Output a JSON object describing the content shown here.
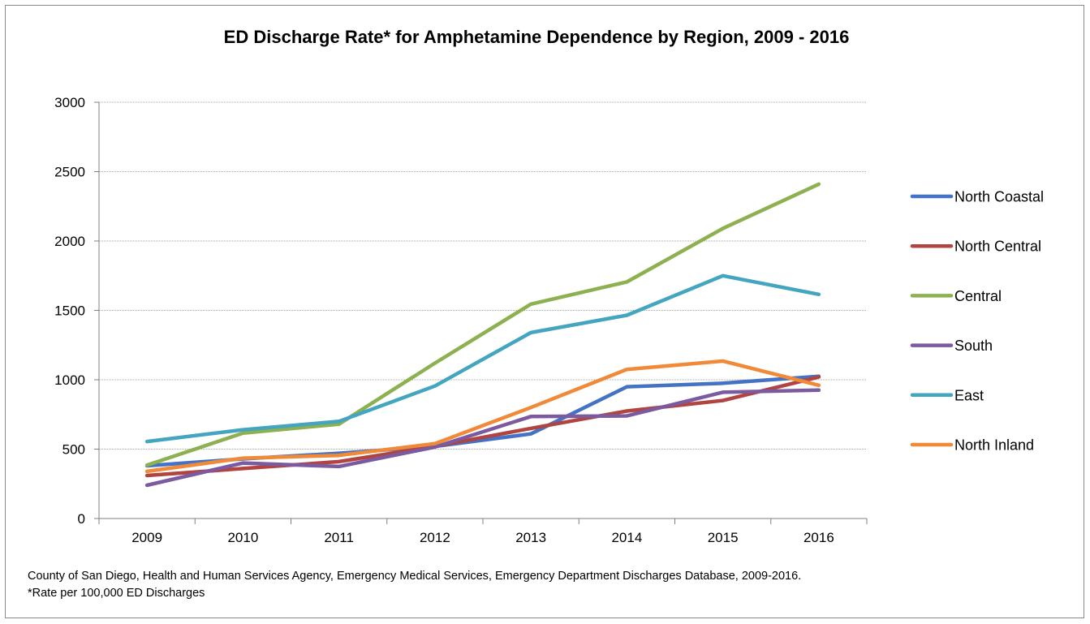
{
  "chart_data": {
    "type": "line",
    "title": "ED Discharge Rate*  for Amphetamine Dependence by Region, 2009 - 2016",
    "xlabel": "",
    "ylabel": "",
    "categories": [
      "2009",
      "2010",
      "2011",
      "2012",
      "2013",
      "2014",
      "2015",
      "2016"
    ],
    "ylim": [
      0,
      3000
    ],
    "yticks": [
      "0",
      "500",
      "1000",
      "1500",
      "2000",
      "2500",
      "3000"
    ],
    "grid": "horizontal",
    "legend_position": "right",
    "series": [
      {
        "name": "North Coastal",
        "color": "#4472c4",
        "values": [
          380,
          430,
          470,
          520,
          610,
          950,
          975,
          1025
        ]
      },
      {
        "name": "North Central",
        "color": "#b04440",
        "values": [
          310,
          360,
          410,
          520,
          650,
          775,
          850,
          1020
        ]
      },
      {
        "name": "Central",
        "color": "#8db050",
        "values": [
          385,
          615,
          680,
          1120,
          1545,
          1705,
          2090,
          2410
        ]
      },
      {
        "name": "South",
        "color": "#7b5aa0",
        "values": [
          240,
          400,
          375,
          515,
          735,
          740,
          910,
          925
        ]
      },
      {
        "name": "East",
        "color": "#43a5c0",
        "values": [
          555,
          640,
          700,
          955,
          1340,
          1465,
          1750,
          1615
        ]
      },
      {
        "name": "North Inland",
        "color": "#f08a38",
        "values": [
          340,
          435,
          455,
          540,
          800,
          1075,
          1135,
          960
        ]
      }
    ]
  },
  "footnote": {
    "source": "County of San Diego, Health  and Human  Services Agency, Emergency Medical Services, Emergency Department  Discharges Database,  2009-2016.",
    "rate_note": "*Rate per 100,000 ED Discharges"
  }
}
